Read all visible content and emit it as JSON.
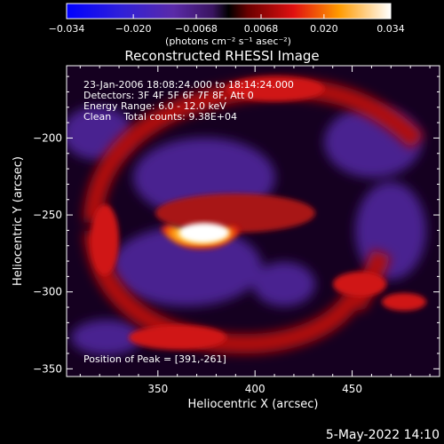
{
  "chart_data": {
    "type": "heatmap",
    "title": "Reconstructed RHESSI Image",
    "xlabel": "Heliocentric X (arcsec)",
    "ylabel": "Heliocentric Y (arcsec)",
    "xlim": [
      303,
      495
    ],
    "ylim": [
      -355,
      -153
    ],
    "x_ticks": [
      350,
      400,
      450
    ],
    "y_ticks": [
      -200,
      -250,
      -300,
      -350
    ],
    "colorbar": {
      "label": "(photons cm⁻² s⁻¹ asec⁻²)",
      "range": [
        -0.034,
        0.034
      ],
      "tick_labels": [
        "−0.034",
        "−0.020",
        "−0.0068",
        "0.0068",
        "0.020",
        "0.034"
      ],
      "tick_values": [
        -0.034,
        -0.02,
        -0.0068,
        0.0068,
        0.02,
        0.034
      ]
    },
    "info_lines": [
      "23-Jan-2006 18:08:24.000 to 18:14:24.000",
      "Detectors: 3F 4F 5F 6F 7F 8F, Att 0",
      "Energy Range: 6.0 - 12.0 keV",
      "Clean    Total counts: 9.38E+04"
    ],
    "peak_text": "Position of Peak = [391,-261]",
    "peak": [
      391,
      -261
    ],
    "features": {
      "source": {
        "x": 388,
        "y": -256,
        "peak_value": 0.034
      },
      "outer_ring": {
        "center": [
          388,
          -262
        ],
        "radius": 75,
        "value": 0.012
      }
    }
  },
  "footer": {
    "date": "5-May-2022 14:10"
  }
}
